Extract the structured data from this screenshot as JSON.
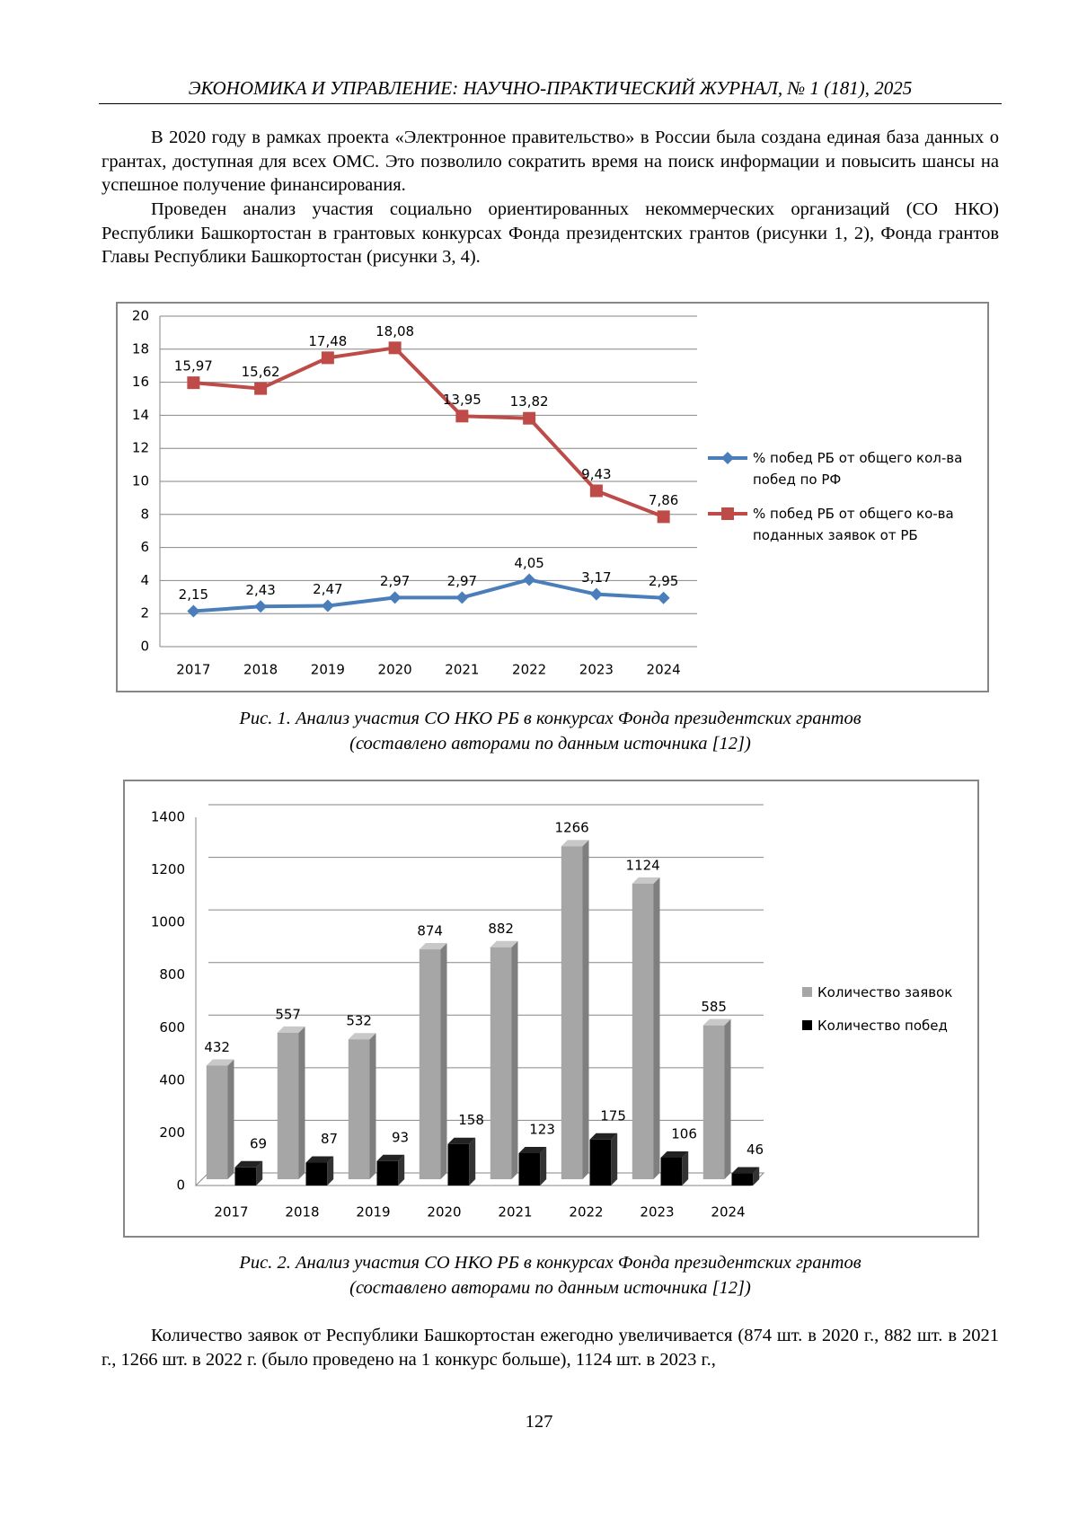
{
  "header": {
    "title": "ЭКОНОМИКА И УПРАВЛЕНИЕ: НАУЧНО-ПРАКТИЧЕСКИЙ ЖУРНАЛ, № 1 (181), 2025"
  },
  "paragraphs": [
    "В 2020 году в рамках проекта «Электронное правительство» в России была создана единая база данных о грантах, доступная для всех ОМС. Это позволило сократить время на поиск информации и повысить шансы на успешное получение финансирования.",
    "Проведен анализ участия социально ориентированных некоммерческих организаций (СО НКО) Республики Башкортостан в грантовых конкурсах Фонда президентских грантов (рисунки 1, 2), Фонда грантов Главы Республики Башкортостан (рисунки 3, 4)."
  ],
  "chart_data": [
    {
      "type": "line",
      "categories": [
        "2017",
        "2018",
        "2019",
        "2020",
        "2021",
        "2022",
        "2023",
        "2024"
      ],
      "series": [
        {
          "name": "% побед РБ от общего кол-ва побед по РФ",
          "color": "#4a7ebb",
          "marker": "diamond",
          "values": [
            2.15,
            2.43,
            2.47,
            2.97,
            2.97,
            4.05,
            3.17,
            2.95
          ],
          "value_labels": [
            "2,15",
            "2,43",
            "2,47",
            "2,97",
            "2,97",
            "4,05",
            "3,17",
            "2,95"
          ]
        },
        {
          "name": "% побед РБ от общего ко-ва поданных заявок от РБ",
          "color": "#be4b48",
          "marker": "square",
          "values": [
            15.97,
            15.62,
            17.48,
            18.08,
            13.95,
            13.82,
            9.43,
            7.86
          ],
          "value_labels": [
            "15,97",
            "15,62",
            "17,48",
            "18,08",
            "13,95",
            "13,82",
            "9,43",
            "7,86"
          ]
        }
      ],
      "ylim": [
        0,
        20
      ],
      "yticks": [
        0,
        2,
        4,
        6,
        8,
        10,
        12,
        14,
        16,
        18,
        20
      ],
      "grid": true,
      "legend": "right"
    },
    {
      "type": "bar",
      "categories": [
        "2017",
        "2018",
        "2019",
        "2020",
        "2021",
        "2022",
        "2023",
        "2024"
      ],
      "series": [
        {
          "name": "Количество заявок",
          "color": "#a6a6a6",
          "values": [
            432,
            557,
            532,
            874,
            882,
            1266,
            1124,
            585
          ]
        },
        {
          "name": "Количество побед",
          "color": "#000000",
          "values": [
            69,
            87,
            93,
            158,
            123,
            175,
            106,
            46
          ]
        }
      ],
      "ylim": [
        0,
        1400
      ],
      "yticks": [
        0,
        200,
        400,
        600,
        800,
        1000,
        1200,
        1400
      ],
      "grid": true,
      "legend": "right"
    }
  ],
  "captions": [
    [
      "Рис. 1. Анализ участия СО НКО РБ в конкурсах Фонда президентских грантов",
      "(составлено авторами по данным источника [12])"
    ],
    [
      "Рис. 2. Анализ участия СО НКО РБ в конкурсах Фонда президентских грантов",
      "(составлено авторами по данным источника [12])"
    ]
  ],
  "closing_paragraph": "Количество заявок от Республики Башкортостан ежегодно увеличивается (874 шт. в 2020 г., 882 шт. в 2021 г., 1266 шт. в 2022 г. (было проведено на 1 конкурс больше), 1124 шт. в 2023 г.,",
  "page_number": "127"
}
